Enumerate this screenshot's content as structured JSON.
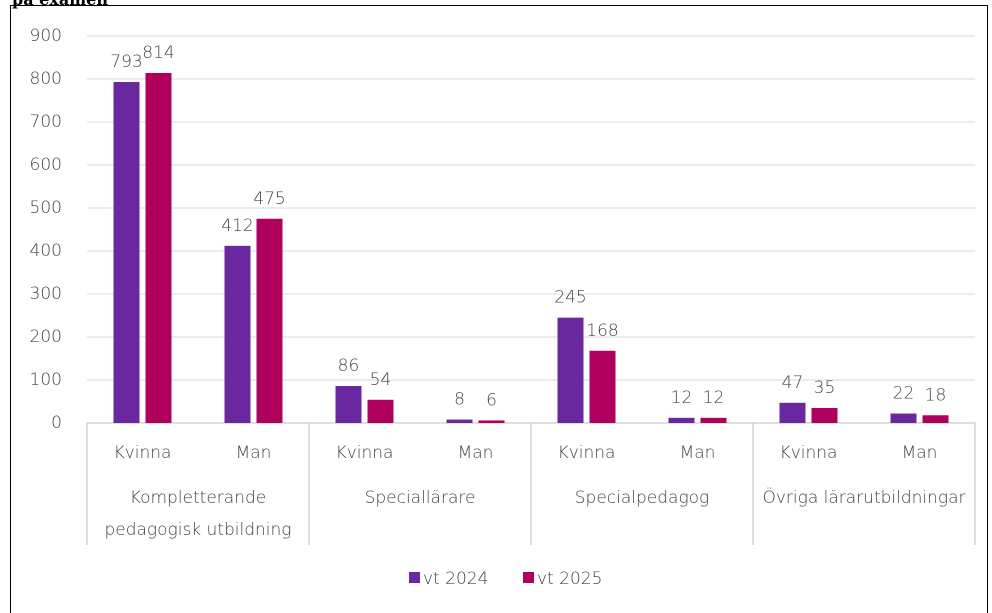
{
  "chart_data": {
    "type": "bar",
    "title": "på examen",
    "groups": [
      {
        "name": "Kompletterande pedagogisk utbildning",
        "categories": [
          "Kvinna",
          "Man"
        ]
      },
      {
        "name": "Speciallärare",
        "categories": [
          "Kvinna",
          "Man"
        ]
      },
      {
        "name": "Specialpedagog",
        "categories": [
          "Kvinna",
          "Man"
        ]
      },
      {
        "name": "Övriga lärarutbildningar",
        "categories": [
          "Kvinna",
          "Man"
        ]
      }
    ],
    "series": [
      {
        "name": "vt 2024",
        "color": "#6a28a0",
        "values": [
          793,
          412,
          86,
          8,
          245,
          12,
          47,
          22
        ]
      },
      {
        "name": "vt 2025",
        "color": "#b0005e",
        "values": [
          814,
          475,
          54,
          6,
          168,
          12,
          35,
          18
        ]
      }
    ],
    "ylim": [
      0,
      900
    ],
    "yticks": [
      0,
      100,
      200,
      300,
      400,
      500,
      600,
      700,
      800,
      900
    ],
    "grid": true,
    "legend": "bottom"
  }
}
